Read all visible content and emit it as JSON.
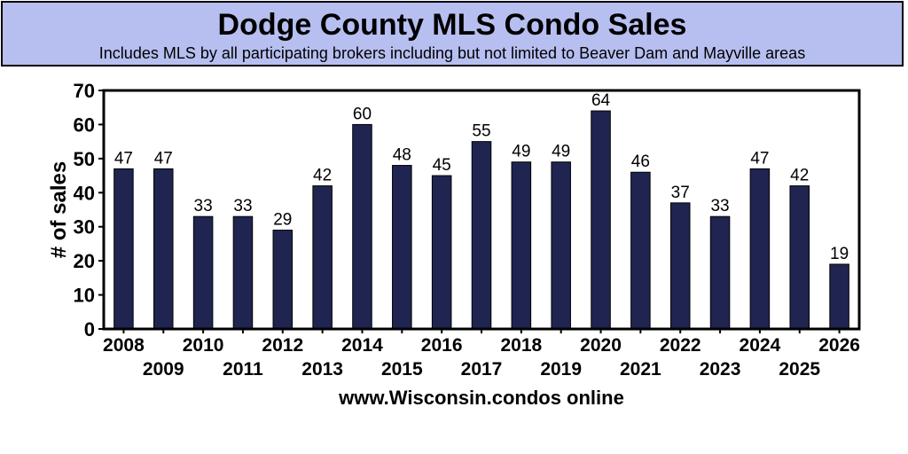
{
  "header": {
    "title": "Dodge County MLS Condo Sales",
    "subtitle": "Includes MLS by all participating brokers including but not limited to Beaver Dam and Mayville areas"
  },
  "chart_data": {
    "type": "bar",
    "categories": [
      "2008",
      "2009",
      "2010",
      "2011",
      "2012",
      "2013",
      "2014",
      "2015",
      "2016",
      "2017",
      "2018",
      "2019",
      "2020",
      "2021",
      "2022",
      "2023",
      "2024",
      "2025",
      "2026"
    ],
    "values": [
      47,
      47,
      33,
      33,
      29,
      42,
      60,
      48,
      45,
      55,
      49,
      49,
      64,
      46,
      37,
      33,
      47,
      42,
      19
    ],
    "ylabel": "# of sales",
    "xlabel": "www.Wisconsin.condos online",
    "ylim": [
      0,
      70
    ],
    "yticks": [
      0,
      10,
      20,
      30,
      40,
      50,
      60,
      70
    ],
    "grid": false,
    "bar_color": "#1f2550"
  }
}
